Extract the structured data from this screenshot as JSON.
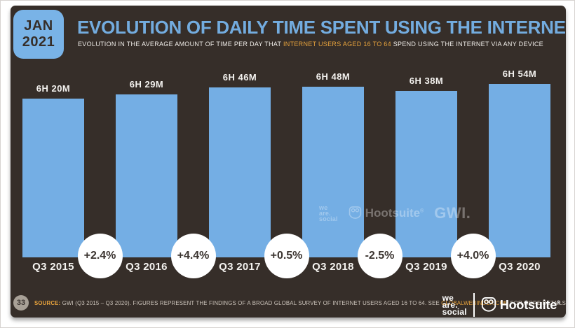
{
  "header": {
    "date_month": "JAN",
    "date_year": "2021",
    "title": "EVOLUTION OF DAILY TIME SPENT USING THE INTERNET",
    "subtitle_prefix": "EVOLUTION IN THE AVERAGE AMOUNT OF TIME PER DAY THAT ",
    "subtitle_highlight": "INTERNET USERS AGED 16 TO 64",
    "subtitle_suffix": " SPEND USING THE INTERNET VIA ANY DEVICE"
  },
  "chart_data": {
    "type": "bar",
    "title": "EVOLUTION OF DAILY TIME SPENT USING THE INTERNET",
    "categories": [
      "Q3 2015",
      "Q3 2016",
      "Q3 2017",
      "Q3 2018",
      "Q3 2019",
      "Q3 2020"
    ],
    "series": [
      {
        "name": "Average daily time spent using the internet",
        "labels": [
          "6H 20M",
          "6H 29M",
          "6H 46M",
          "6H 48M",
          "6H 38M",
          "6H 54M"
        ],
        "values_minutes": [
          380,
          389,
          406,
          408,
          398,
          414
        ]
      }
    ],
    "pct_changes": [
      "+2.4%",
      "+4.4%",
      "+0.5%",
      "-2.5%",
      "+4.0%"
    ],
    "xlabel": "",
    "ylabel": "",
    "grid": false,
    "legend": false,
    "bar_color": "#74AEE4",
    "background_color": "#362E29",
    "accent_color": "#E8A33C",
    "title_color": "#73ACDF"
  },
  "watermark": {
    "wearesocial_lines": [
      "we",
      "are.",
      "social"
    ],
    "hootsuite": "Hootsuite",
    "hootsuite_registered": "®",
    "gwi": "GWI."
  },
  "footer": {
    "page_number": "33",
    "source_label": "SOURCE:",
    "source_pre": " GWI (Q3 2015 – Q3 2020). FIGURES REPRESENT THE FINDINGS OF A BROAD GLOBAL SURVEY OF INTERNET USERS AGED 16 TO 64. SEE ",
    "source_link": "GLOBALWEBINDEX.COM",
    "source_post": " FOR MORE DETAILS.",
    "wearesocial_lines": [
      "we",
      "are.",
      "social"
    ],
    "hootsuite": "Hootsuite",
    "hootsuite_registered": "®"
  }
}
